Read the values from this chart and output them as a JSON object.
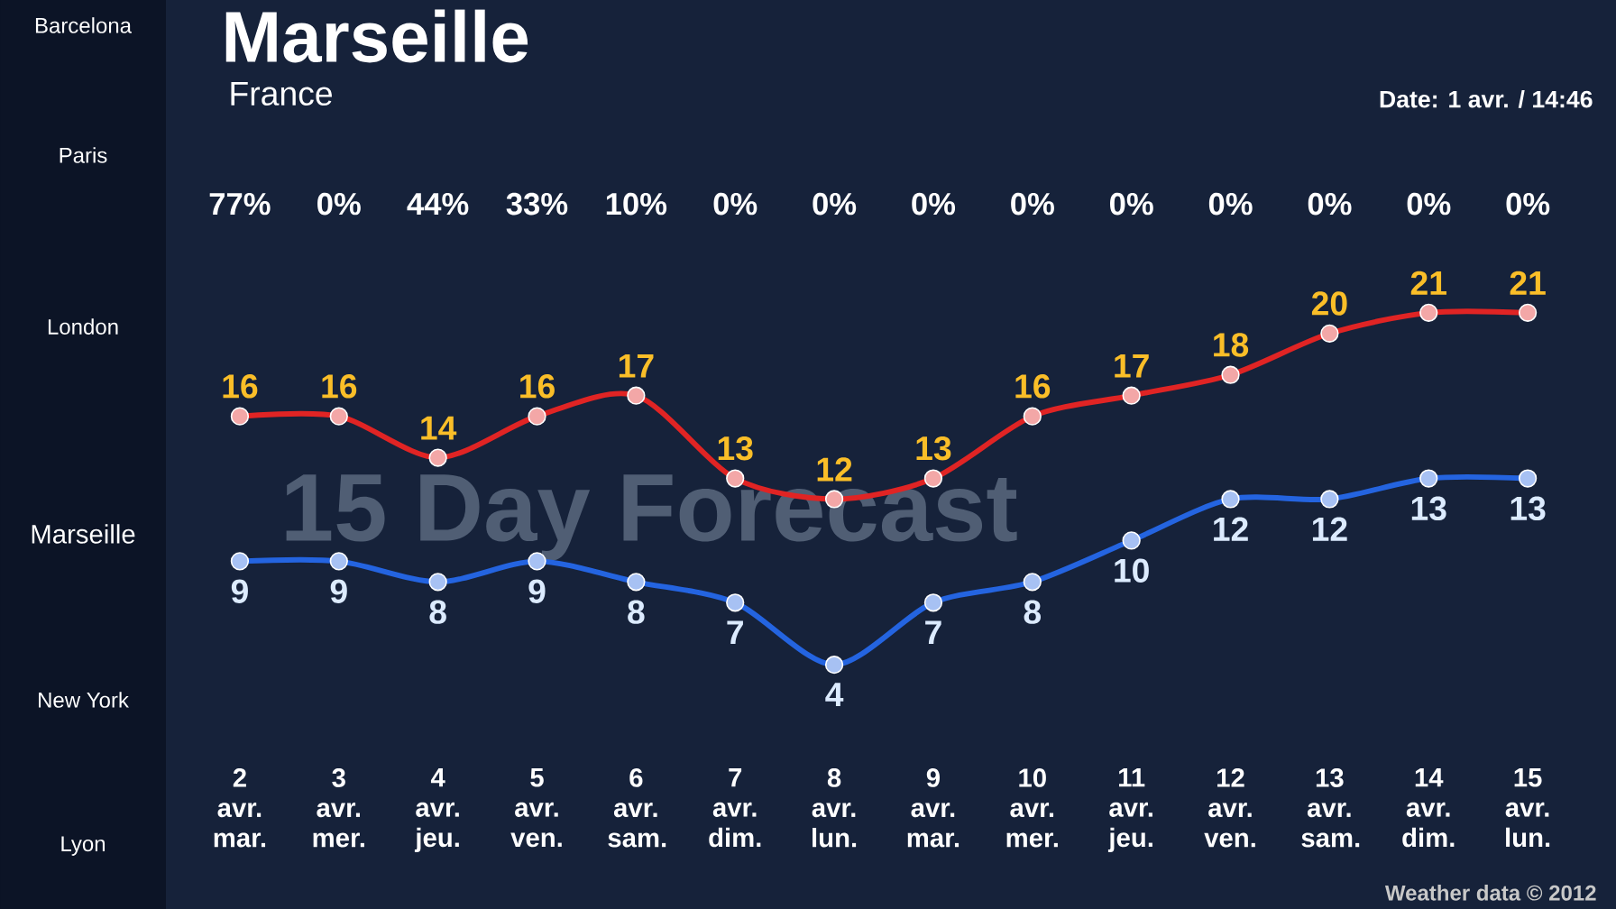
{
  "chart_data": {
    "type": "line",
    "title": "Marseille",
    "subtitle": "France",
    "annotations": [
      "Date: 1 avr. / 14:46",
      "15 Day Forecast",
      "Weather data © 2012",
      "Barcelona",
      "Paris",
      "London",
      "Marseille",
      "New York",
      "Lyon",
      "77%",
      "0%",
      "44%",
      "33%",
      "10%",
      "0%",
      "0%",
      "0%",
      "0%",
      "0%",
      "0%",
      "0%",
      "0%",
      "0%"
    ],
    "categories": [
      "2 avr. mar.",
      "3 avr. mer.",
      "4 avr. jeu.",
      "5 avr. ven.",
      "6 avr. sam.",
      "7 avr. dim.",
      "8 avr. lun.",
      "9 avr. mar.",
      "10 avr. mer.",
      "11 avr. jeu.",
      "12 avr. ven.",
      "13 avr. sam.",
      "14 avr. dim.",
      "15 avr. lun."
    ],
    "series": [
      {
        "color": "#e02424",
        "values": [
          16,
          16,
          14,
          16,
          17,
          13,
          12,
          13,
          16,
          17,
          18,
          20,
          21,
          21
        ]
      },
      {
        "color": "#2464e0",
        "values": [
          9,
          9,
          8,
          9,
          8,
          7,
          4,
          7,
          8,
          10,
          12,
          12,
          13,
          13
        ]
      }
    ],
    "data_labels": true,
    "marker": "circle",
    "line_style": "solid",
    "grid": false
  }
}
